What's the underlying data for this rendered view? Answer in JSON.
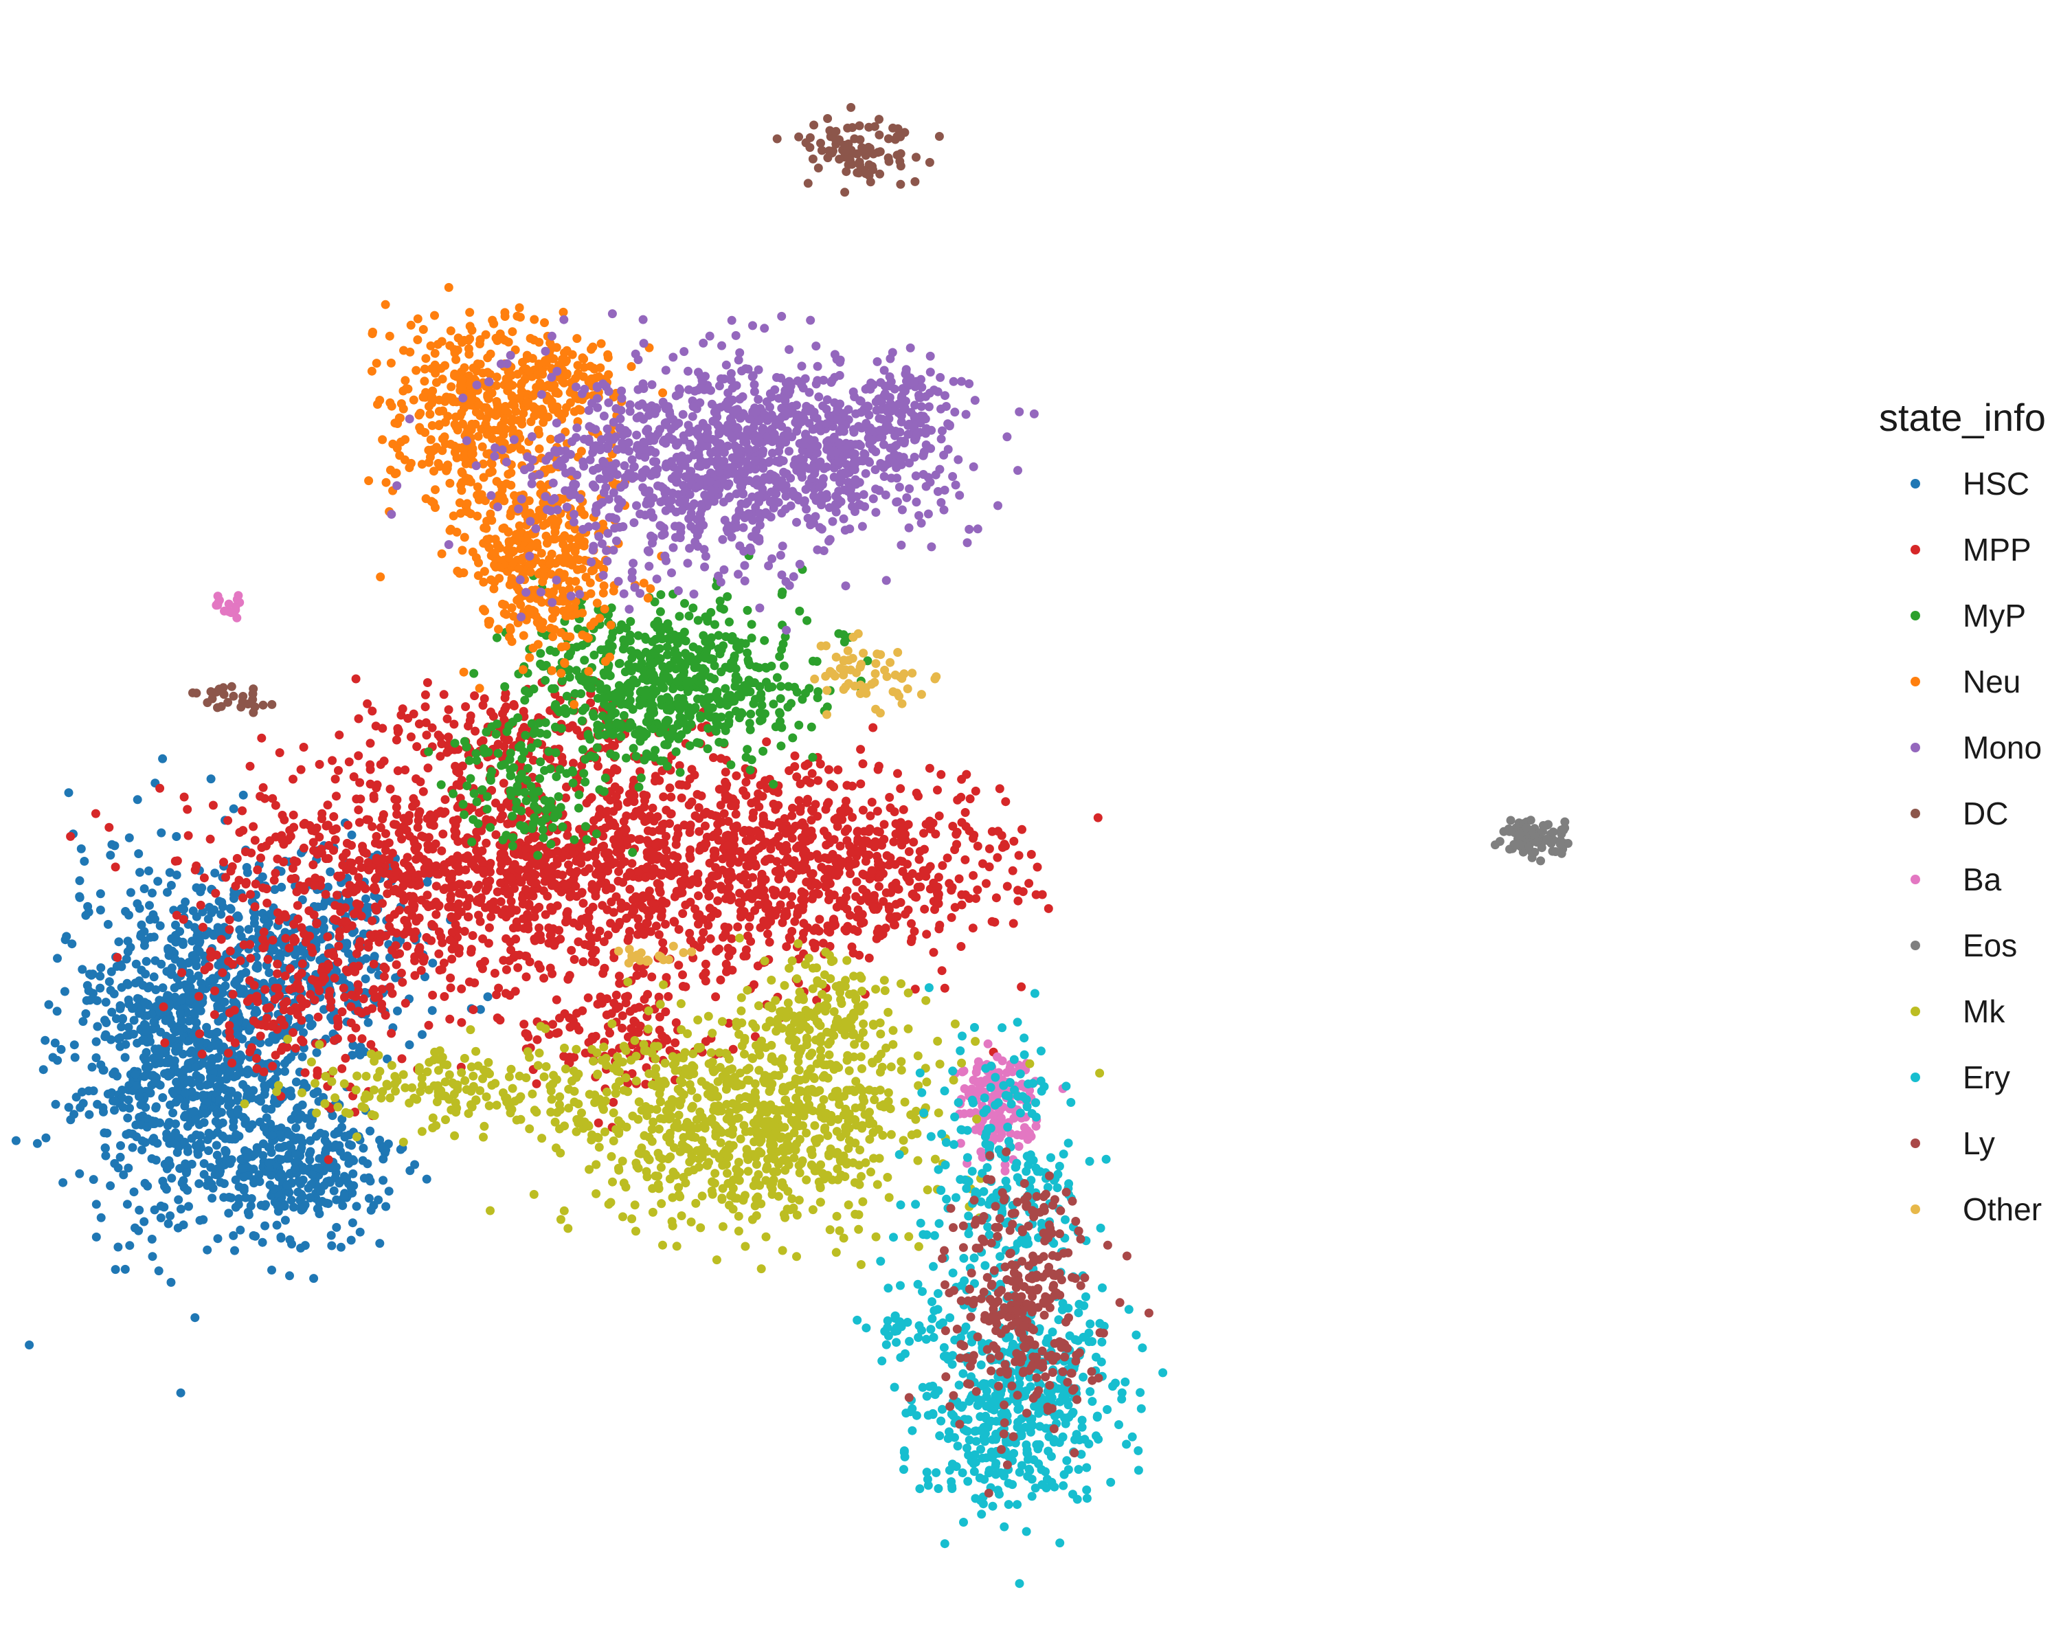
{
  "chart_data": {
    "type": "scatter",
    "title": "",
    "xlabel": "",
    "ylabel": "",
    "xlim": [
      0,
      100
    ],
    "ylim": [
      0,
      100
    ],
    "grid": false,
    "axes_visible": false,
    "legend": {
      "title": "state_info",
      "placement": "right",
      "entries": [
        {
          "name": "HSC",
          "color": "#1f77b4"
        },
        {
          "name": "MPP",
          "color": "#d62728"
        },
        {
          "name": "MyP",
          "color": "#2ca02c"
        },
        {
          "name": "Neu",
          "color": "#ff7f0e"
        },
        {
          "name": "Mono",
          "color": "#9467bd"
        },
        {
          "name": "DC",
          "color": "#8c564b"
        },
        {
          "name": "Ba",
          "color": "#e377c2"
        },
        {
          "name": "Eos",
          "color": "#7f7f7f"
        },
        {
          "name": "Mk",
          "color": "#bcbd22"
        },
        {
          "name": "Ery",
          "color": "#17becf"
        },
        {
          "name": "Ly",
          "color": "#a94848"
        },
        {
          "name": "Other",
          "color": "#e7b84a"
        }
      ]
    },
    "series": [
      {
        "name": "HSC",
        "color": "#1f77b4",
        "clusters": [
          {
            "cx": 8,
            "cy": 36,
            "sx": 3.5,
            "sy": 5.5,
            "n": 1100
          },
          {
            "cx": 14,
            "cy": 28,
            "sx": 2.5,
            "sy": 2.2,
            "n": 300
          },
          {
            "cx": 16,
            "cy": 42,
            "sx": 3,
            "sy": 3,
            "n": 300
          }
        ]
      },
      {
        "name": "MPP",
        "color": "#d62728",
        "clusters": [
          {
            "cx": 20,
            "cy": 46,
            "sx": 6,
            "sy": 4,
            "n": 700
          },
          {
            "cx": 33,
            "cy": 48,
            "sx": 7,
            "sy": 3.5,
            "n": 900
          },
          {
            "cx": 45,
            "cy": 47,
            "sx": 5,
            "sy": 3,
            "n": 500
          },
          {
            "cx": 33,
            "cy": 37,
            "sx": 3,
            "sy": 2,
            "n": 150
          },
          {
            "cx": 14,
            "cy": 38,
            "sx": 3,
            "sy": 3,
            "n": 150
          },
          {
            "cx": 27,
            "cy": 56,
            "sx": 4,
            "sy": 1.5,
            "n": 150
          }
        ]
      },
      {
        "name": "MyP",
        "color": "#2ca02c",
        "clusters": [
          {
            "cx": 35,
            "cy": 59,
            "sx": 4,
            "sy": 2.5,
            "n": 650
          },
          {
            "cx": 27,
            "cy": 52,
            "sx": 2,
            "sy": 2,
            "n": 120
          }
        ]
      },
      {
        "name": "Neu",
        "color": "#ff7f0e",
        "clusters": [
          {
            "cx": 24,
            "cy": 76,
            "sx": 2.5,
            "sy": 3,
            "n": 400
          },
          {
            "cx": 28,
            "cy": 67,
            "sx": 2.2,
            "sy": 3,
            "n": 400
          },
          {
            "cx": 29,
            "cy": 78,
            "sx": 2,
            "sy": 1.5,
            "n": 150
          }
        ]
      },
      {
        "name": "Mono",
        "color": "#9467bd",
        "clusters": [
          {
            "cx": 36,
            "cy": 73,
            "sx": 5,
            "sy": 3.5,
            "n": 800
          },
          {
            "cx": 44,
            "cy": 74,
            "sx": 4,
            "sy": 2.5,
            "n": 450
          },
          {
            "cx": 49,
            "cy": 77,
            "sx": 1.5,
            "sy": 1.5,
            "n": 80
          }
        ]
      },
      {
        "name": "DC",
        "color": "#8c564b",
        "clusters": [
          {
            "cx": 46,
            "cy": 93,
            "sx": 1.8,
            "sy": 1.2,
            "n": 90
          },
          {
            "cx": 10,
            "cy": 58,
            "sx": 1.3,
            "sy": 0.6,
            "n": 25
          }
        ]
      },
      {
        "name": "Ba",
        "color": "#e377c2",
        "clusters": [
          {
            "cx": 54,
            "cy": 32,
            "sx": 1.1,
            "sy": 1.5,
            "n": 160
          },
          {
            "cx": 10,
            "cy": 64,
            "sx": 0.7,
            "sy": 0.5,
            "n": 15
          }
        ]
      },
      {
        "name": "Eos",
        "color": "#7f7f7f",
        "clusters": [
          {
            "cx": 84.8,
            "cy": 49,
            "sx": 0.9,
            "sy": 0.7,
            "n": 80
          }
        ]
      },
      {
        "name": "Mk",
        "color": "#bcbd22",
        "clusters": [
          {
            "cx": 40,
            "cy": 31,
            "sx": 5,
            "sy": 3.5,
            "n": 800
          },
          {
            "cx": 24,
            "cy": 33,
            "sx": 5,
            "sy": 1.5,
            "n": 200
          },
          {
            "cx": 44,
            "cy": 38,
            "sx": 2,
            "sy": 2.5,
            "n": 150
          }
        ]
      },
      {
        "name": "Ery",
        "color": "#17becf",
        "clusters": [
          {
            "cx": 55,
            "cy": 13,
            "sx": 3,
            "sy": 3.5,
            "n": 500
          },
          {
            "cx": 54,
            "cy": 27,
            "sx": 2.5,
            "sy": 5,
            "n": 250
          },
          {
            "cx": 48,
            "cy": 18,
            "sx": 1,
            "sy": 0.5,
            "n": 20
          }
        ]
      },
      {
        "name": "Ly",
        "color": "#a94848",
        "clusters": [
          {
            "cx": 55.5,
            "cy": 19.5,
            "sx": 2,
            "sy": 3.5,
            "n": 300
          }
        ]
      },
      {
        "name": "Other",
        "color": "#e7b84a",
        "clusters": [
          {
            "cx": 46.5,
            "cy": 59.5,
            "sx": 1.7,
            "sy": 1,
            "n": 60
          },
          {
            "cx": 34,
            "cy": 41.5,
            "sx": 1,
            "sy": 0.3,
            "n": 20
          }
        ]
      }
    ]
  }
}
